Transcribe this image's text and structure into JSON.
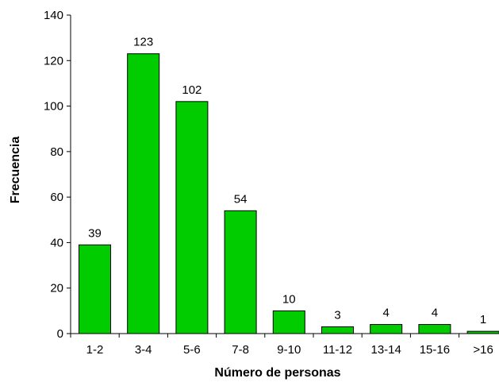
{
  "chart_data": {
    "type": "bar",
    "categories": [
      "1-2",
      "3-4",
      "5-6",
      "7-8",
      "9-10",
      "11-12",
      "13-14",
      "15-16",
      ">16"
    ],
    "values": [
      39,
      123,
      102,
      54,
      10,
      3,
      4,
      4,
      1
    ],
    "data_labels": [
      "39",
      "123",
      "102",
      "54",
      "10",
      "3",
      "4",
      "4",
      "1"
    ],
    "xlabel": "Número de personas",
    "ylabel": "Frecuencia",
    "ylim": [
      0,
      140
    ],
    "yticks": [
      0,
      20,
      40,
      60,
      80,
      100,
      120,
      140
    ],
    "grid": false,
    "bar_color": "#00cc00",
    "bar_edge_color": "#000000"
  }
}
